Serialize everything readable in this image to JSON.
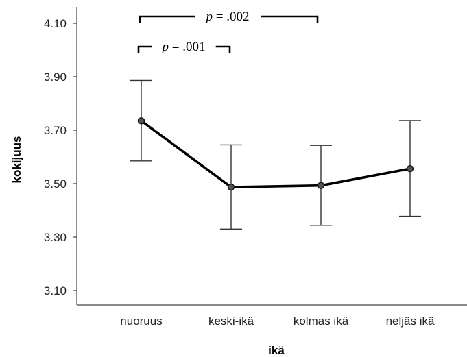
{
  "chart_data": {
    "type": "line",
    "xlabel": "ikä",
    "ylabel": "kokijuus",
    "categories": [
      "nuoruus",
      "keski-ikä",
      "kolmas ikä",
      "neljäs ikä"
    ],
    "series": [
      {
        "values": [
          3.735,
          3.487,
          3.493,
          3.556
        ],
        "error_low": [
          3.585,
          3.33,
          3.344,
          3.378
        ],
        "error_high": [
          3.886,
          3.645,
          3.643,
          3.736
        ],
        "color": "#000000"
      }
    ],
    "y_ticks": [
      "3.10",
      "3.30",
      "3.50",
      "3.70",
      "3.90",
      "4.10"
    ],
    "ylim": [
      3.05,
      4.165
    ],
    "grid": false,
    "legend": "none",
    "annotations": [
      {
        "prefix": "p",
        "text": " = .001",
        "from": "nuoruus",
        "to": "keski-ikä"
      },
      {
        "prefix": "p",
        "text": " = .002",
        "from": "nuoruus",
        "to": "kolmas ikä"
      }
    ]
  }
}
